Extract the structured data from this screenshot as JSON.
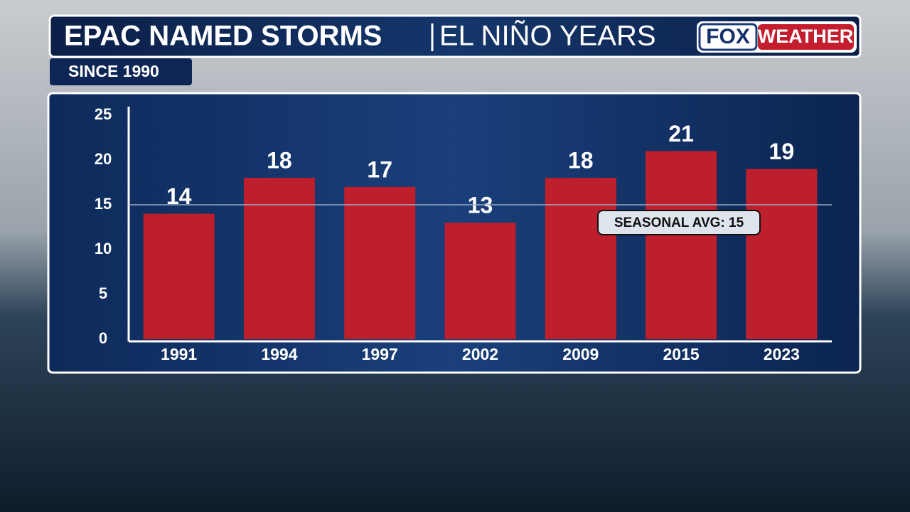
{
  "header": {
    "title": "EPAC NAMED STORMS",
    "title_right": "EL NIÑO YEARS",
    "subtitle": "SINCE 1990",
    "logo_left": "FOX",
    "logo_right": "WEATHER"
  },
  "chart_data": {
    "type": "bar",
    "categories": [
      "1991",
      "1994",
      "1997",
      "2002",
      "2009",
      "2015",
      "2023"
    ],
    "values": [
      14,
      18,
      17,
      13,
      18,
      21,
      19
    ],
    "color": "#bd1f2d",
    "ylim": [
      0,
      25
    ],
    "yticks": [
      0,
      5,
      10,
      15,
      20,
      25
    ],
    "average": {
      "value": 15,
      "label": "SEASONAL AVG: 15"
    }
  }
}
